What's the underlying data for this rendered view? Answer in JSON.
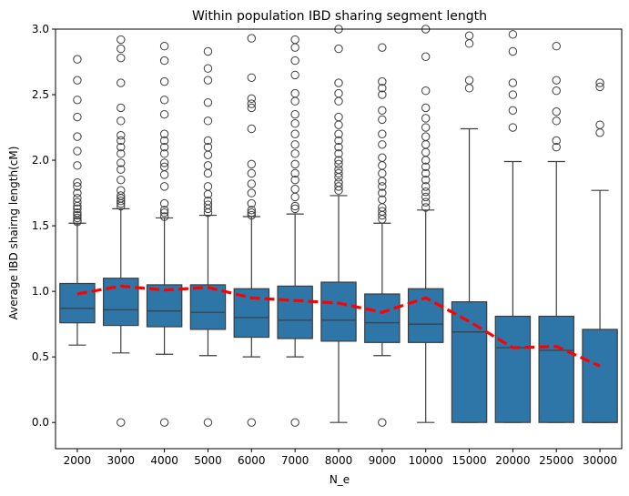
{
  "chart_data": {
    "type": "box",
    "title": "Within population IBD sharing segment length",
    "xlabel": "N_e",
    "ylabel": "Average IBD shairng length(cM)",
    "ylim": [
      -0.2,
      3.0
    ],
    "yticks": [
      0.0,
      0.5,
      1.0,
      1.5,
      2.0,
      2.5,
      3.0
    ],
    "ytick_labels": [
      "0.0",
      "0.5",
      "1.0",
      "1.5",
      "2.0",
      "2.5",
      "3.0"
    ],
    "categories": [
      "2000",
      "3000",
      "4000",
      "5000",
      "6000",
      "7000",
      "8000",
      "9000",
      "10000",
      "15000",
      "20000",
      "25000",
      "30000"
    ],
    "box_color": "#2e75a8",
    "mean_line_color": "#ff0000",
    "boxes": [
      {
        "q1": 0.76,
        "median": 0.87,
        "q3": 1.06,
        "whisker_low": 0.59,
        "whisker_high": 1.52,
        "outliers": [
          1.53,
          1.54,
          1.56,
          1.58,
          1.6,
          1.63,
          1.65,
          1.68,
          1.71,
          1.75,
          1.8,
          1.83,
          1.96,
          2.07,
          2.18,
          2.33,
          2.46,
          2.61,
          2.77
        ]
      },
      {
        "q1": 0.74,
        "median": 0.86,
        "q3": 1.1,
        "whisker_low": 0.53,
        "whisker_high": 1.63,
        "outliers": [
          0.0,
          1.65,
          1.67,
          1.69,
          1.71,
          1.73,
          1.77,
          1.85,
          1.93,
          1.98,
          2.05,
          2.1,
          2.15,
          2.19,
          2.3,
          2.4,
          2.59,
          2.78,
          2.85,
          2.92
        ]
      },
      {
        "q1": 0.73,
        "median": 0.85,
        "q3": 1.05,
        "whisker_low": 0.52,
        "whisker_high": 1.56,
        "outliers": [
          0.0,
          1.57,
          1.6,
          1.62,
          1.67,
          1.8,
          1.89,
          1.95,
          1.98,
          2.05,
          2.1,
          2.15,
          2.2,
          2.35,
          2.46,
          2.6,
          2.76,
          2.87
        ]
      },
      {
        "q1": 0.71,
        "median": 0.84,
        "q3": 1.05,
        "whisker_low": 0.51,
        "whisker_high": 1.58,
        "outliers": [
          0.0,
          1.6,
          1.63,
          1.66,
          1.69,
          1.74,
          1.8,
          1.9,
          1.96,
          2.04,
          2.1,
          2.15,
          2.3,
          2.44,
          2.61,
          2.7,
          2.83
        ]
      },
      {
        "q1": 0.65,
        "median": 0.8,
        "q3": 1.02,
        "whisker_low": 0.5,
        "whisker_high": 1.57,
        "outliers": [
          0.0,
          1.58,
          1.6,
          1.62,
          1.67,
          1.75,
          1.82,
          1.9,
          1.97,
          2.24,
          2.4,
          2.43,
          2.47,
          2.63,
          2.93
        ]
      },
      {
        "q1": 0.64,
        "median": 0.78,
        "q3": 1.04,
        "whisker_low": 0.5,
        "whisker_high": 1.59,
        "outliers": [
          0.0,
          1.63,
          1.65,
          1.72,
          1.78,
          1.85,
          1.9,
          1.97,
          2.05,
          2.12,
          2.2,
          2.28,
          2.35,
          2.45,
          2.51,
          2.65,
          2.76,
          2.86,
          2.92
        ]
      },
      {
        "q1": 0.62,
        "median": 0.78,
        "q3": 1.07,
        "whisker_low": 0.0,
        "whisker_high": 1.73,
        "outliers": [
          1.77,
          1.8,
          1.83,
          1.87,
          1.9,
          1.93,
          1.97,
          2.0,
          2.05,
          2.1,
          2.15,
          2.2,
          2.27,
          2.33,
          2.45,
          2.51,
          2.59,
          2.85,
          3.0
        ]
      },
      {
        "q1": 0.61,
        "median": 0.76,
        "q3": 0.98,
        "whisker_low": 0.51,
        "whisker_high": 1.52,
        "outliers": [
          0.0,
          1.55,
          1.58,
          1.61,
          1.64,
          1.7,
          1.75,
          1.8,
          1.84,
          1.9,
          1.96,
          2.02,
          2.12,
          2.2,
          2.31,
          2.38,
          2.5,
          2.55,
          2.6,
          2.86
        ]
      },
      {
        "q1": 0.61,
        "median": 0.75,
        "q3": 1.02,
        "whisker_low": 0.0,
        "whisker_high": 1.62,
        "outliers": [
          1.64,
          1.68,
          1.72,
          1.76,
          1.8,
          1.85,
          1.9,
          1.95,
          2.0,
          2.06,
          2.12,
          2.18,
          2.25,
          2.32,
          2.4,
          2.53,
          2.79,
          3.0
        ]
      },
      {
        "q1": 0.0,
        "median": 0.69,
        "q3": 0.92,
        "whisker_low": 0.0,
        "whisker_high": 2.24,
        "outliers": [
          2.55,
          2.61,
          2.89,
          2.95
        ]
      },
      {
        "q1": 0.0,
        "median": 0.57,
        "q3": 0.81,
        "whisker_low": 0.0,
        "whisker_high": 1.99,
        "outliers": [
          2.25,
          2.38,
          2.5,
          2.59,
          2.83,
          2.96
        ]
      },
      {
        "q1": 0.0,
        "median": 0.55,
        "q3": 0.81,
        "whisker_low": 0.0,
        "whisker_high": 1.99,
        "outliers": [
          2.1,
          2.15,
          2.3,
          2.37,
          2.53,
          2.61,
          2.87
        ]
      },
      {
        "q1": 0.0,
        "median": 0.0,
        "q3": 0.71,
        "whisker_low": 0.0,
        "whisker_high": 1.77,
        "outliers": [
          2.21,
          2.27,
          2.56,
          2.59
        ]
      }
    ],
    "mean_line": [
      0.98,
      1.04,
      1.01,
      1.03,
      0.95,
      0.93,
      0.91,
      0.84,
      0.95,
      0.77,
      0.57,
      0.58,
      0.43
    ]
  }
}
